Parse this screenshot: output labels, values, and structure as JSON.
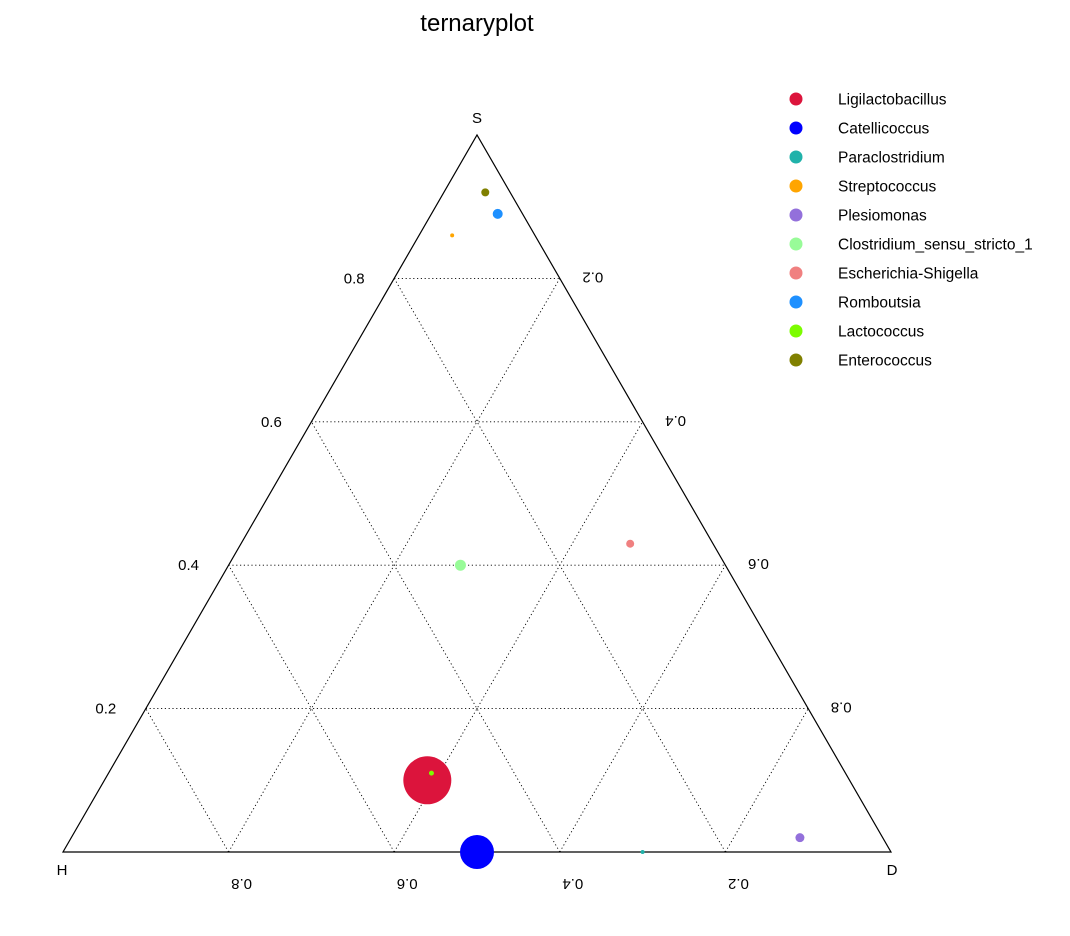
{
  "chart_data": {
    "type": "scatter",
    "subtype": "ternary",
    "title": "ternaryplot",
    "axes": {
      "top": "S",
      "left": "H",
      "right": "D"
    },
    "ticks": {
      "left_edge": [
        "0.8",
        "0.6",
        "0.4",
        "0.2"
      ],
      "right_edge": [
        "0.2",
        "0.4",
        "0.6",
        "0.8"
      ],
      "bottom_edge": [
        "0.8",
        "0.6",
        "0.4",
        "0.2"
      ]
    },
    "grid": true,
    "legend_position": "top-right",
    "series": [
      {
        "name": "Ligilactobacillus",
        "color": "#DC143C",
        "S": 0.1,
        "H": 0.51,
        "D": 0.39,
        "size": 48
      },
      {
        "name": "Catellicoccus",
        "color": "#0000FF",
        "S": 0.0,
        "H": 0.5,
        "D": 0.5,
        "size": 34
      },
      {
        "name": "Paraclostridium",
        "color": "#20B2AA",
        "S": 0.0,
        "H": 0.3,
        "D": 0.7,
        "size": 4
      },
      {
        "name": "Streptococcus",
        "color": "#FFA500",
        "S": 0.86,
        "H": 0.1,
        "D": 0.04,
        "size": 4
      },
      {
        "name": "Plesiomonas",
        "color": "#9370DB",
        "S": 0.02,
        "H": 0.1,
        "D": 0.88,
        "size": 9
      },
      {
        "name": "Clostridium_sensu_stricto_1",
        "color": "#98FB98",
        "S": 0.4,
        "H": 0.32,
        "D": 0.28,
        "size": 11
      },
      {
        "name": "Escherichia-Shigella",
        "color": "#F08080",
        "S": 0.43,
        "H": 0.1,
        "D": 0.47,
        "size": 8
      },
      {
        "name": "Romboutsia",
        "color": "#1E90FF",
        "S": 0.89,
        "H": 0.03,
        "D": 0.08,
        "size": 10
      },
      {
        "name": "Lactococcus",
        "color": "#7CFC00",
        "S": 0.11,
        "H": 0.5,
        "D": 0.39,
        "size": 5
      },
      {
        "name": "Enterococcus",
        "color": "#808000",
        "S": 0.92,
        "H": 0.03,
        "D": 0.05,
        "size": 8
      }
    ]
  }
}
